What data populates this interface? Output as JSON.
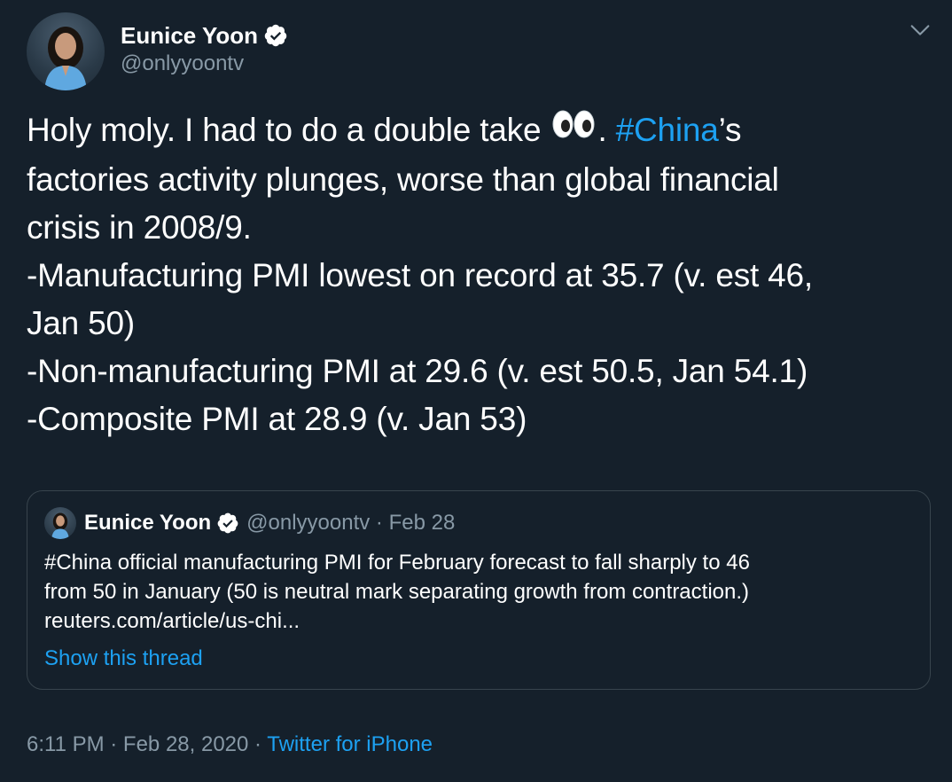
{
  "author": {
    "display_name": "Eunice Yoon",
    "handle": "@onlyyoontv",
    "verified": true
  },
  "tweet": {
    "text_part1": "Holy moly. I had to do a double take ",
    "emoji": "eyes-emoji",
    "text_part2": ". ",
    "hashtag": "#China",
    "text_part3": "’s",
    "lines": [
      "factories activity plunges, worse than global financial",
      "crisis in 2008/9.",
      "-Manufacturing PMI lowest on record at 35.7 (v. est 46,",
      "Jan 50)",
      "-Non-manufacturing PMI at 29.6 (v. est 50.5, Jan 54.1)",
      "-Composite PMI at 28.9 (v. Jan 53)"
    ]
  },
  "quoted_tweet": {
    "display_name": "Eunice Yoon",
    "handle_date": "@onlyyoontv · Feb 28",
    "lines": [
      "#China official manufacturing PMI for February forecast to fall sharply to 46",
      "from 50 in January (50 is neutral mark separating growth from contraction.)",
      "reuters.com/article/us-chi..."
    ],
    "show_thread": "Show this thread"
  },
  "footer": {
    "time_date": "6:11 PM · Feb 28, 2020 · ",
    "source": "Twitter for iPhone"
  },
  "colors": {
    "background": "#15202b",
    "link": "#1da1f2",
    "secondary_text": "#8899a6",
    "border": "#38444d"
  },
  "icons": {
    "verified": "verified-badge-icon",
    "caret": "chevron-down-icon"
  }
}
